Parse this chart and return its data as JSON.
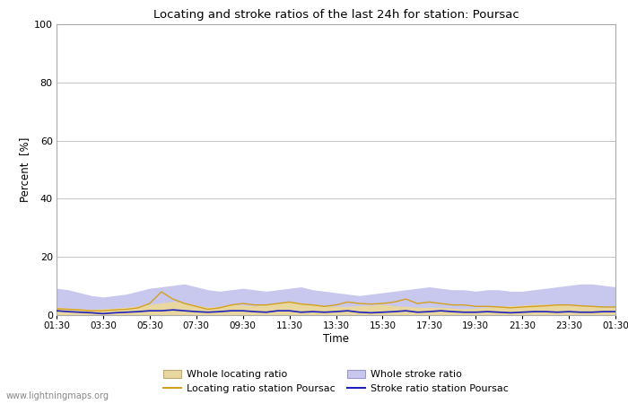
{
  "title": "Locating and stroke ratios of the last 24h for station: Poursac",
  "ylabel": "Percent  [%]",
  "xlabel": "Time",
  "ylim": [
    0,
    100
  ],
  "yticks": [
    0,
    20,
    40,
    60,
    80,
    100
  ],
  "xtick_labels": [
    "01:30",
    "03:30",
    "05:30",
    "07:30",
    "09:30",
    "11:30",
    "13:30",
    "15:30",
    "17:30",
    "19:30",
    "21:30",
    "23:30",
    "01:30"
  ],
  "bg_color": "#ffffff",
  "plot_bg_color": "#ffffff",
  "watermark": "www.lightningmaps.org",
  "whole_locating_fill_color": "#e8d8a0",
  "whole_stroke_fill_color": "#c8c8ee",
  "locating_line_color": "#d4a020",
  "stroke_line_color": "#2020bb",
  "whole_locating": [
    2.5,
    2.2,
    2.0,
    1.8,
    2.0,
    2.2,
    2.5,
    3.0,
    3.5,
    4.0,
    4.5,
    4.0,
    3.2,
    2.5,
    2.8,
    3.5,
    3.2,
    3.0,
    3.5,
    3.8,
    4.5,
    4.0,
    3.5,
    3.0,
    2.8,
    2.8,
    3.0,
    3.2,
    3.5,
    3.0,
    2.8,
    2.5,
    2.5,
    2.5,
    2.2,
    2.0,
    2.2,
    2.5,
    2.8,
    3.0,
    3.2,
    3.5,
    3.5,
    3.5,
    3.2,
    3.0,
    2.8,
    2.5,
    2.5
  ],
  "whole_stroke": [
    9.0,
    8.5,
    7.5,
    6.5,
    6.0,
    6.5,
    7.0,
    8.0,
    9.0,
    9.5,
    10.0,
    10.5,
    9.5,
    8.5,
    8.0,
    8.5,
    9.0,
    8.5,
    8.0,
    8.5,
    9.0,
    9.5,
    8.5,
    8.0,
    7.5,
    7.0,
    6.5,
    7.0,
    7.5,
    8.0,
    8.5,
    9.0,
    9.5,
    9.0,
    8.5,
    8.5,
    8.0,
    8.5,
    8.5,
    8.0,
    8.0,
    8.5,
    9.0,
    9.5,
    10.0,
    10.5,
    10.5,
    10.0,
    9.5
  ],
  "locating_station": [
    2.2,
    2.0,
    1.8,
    1.5,
    1.5,
    1.8,
    2.0,
    2.5,
    4.0,
    8.0,
    5.5,
    4.0,
    3.0,
    2.0,
    2.5,
    3.5,
    4.0,
    3.5,
    3.5,
    4.0,
    4.5,
    3.8,
    3.5,
    3.0,
    3.5,
    4.5,
    4.0,
    3.8,
    4.0,
    4.5,
    5.5,
    4.0,
    4.5,
    4.0,
    3.5,
    3.5,
    3.0,
    3.0,
    2.8,
    2.5,
    2.8,
    3.0,
    3.2,
    3.5,
    3.5,
    3.2,
    3.0,
    2.8,
    2.8
  ],
  "stroke_station": [
    1.5,
    1.2,
    1.0,
    0.8,
    0.5,
    0.8,
    1.0,
    1.2,
    1.5,
    1.5,
    1.8,
    1.5,
    1.2,
    1.0,
    1.2,
    1.5,
    1.5,
    1.2,
    1.0,
    1.5,
    1.5,
    1.0,
    1.2,
    1.0,
    1.2,
    1.5,
    1.0,
    0.8,
    1.0,
    1.2,
    1.5,
    1.0,
    1.2,
    1.5,
    1.2,
    1.0,
    1.0,
    1.2,
    1.0,
    0.8,
    1.0,
    1.2,
    1.2,
    1.0,
    1.2,
    1.0,
    1.0,
    1.2,
    1.2
  ]
}
